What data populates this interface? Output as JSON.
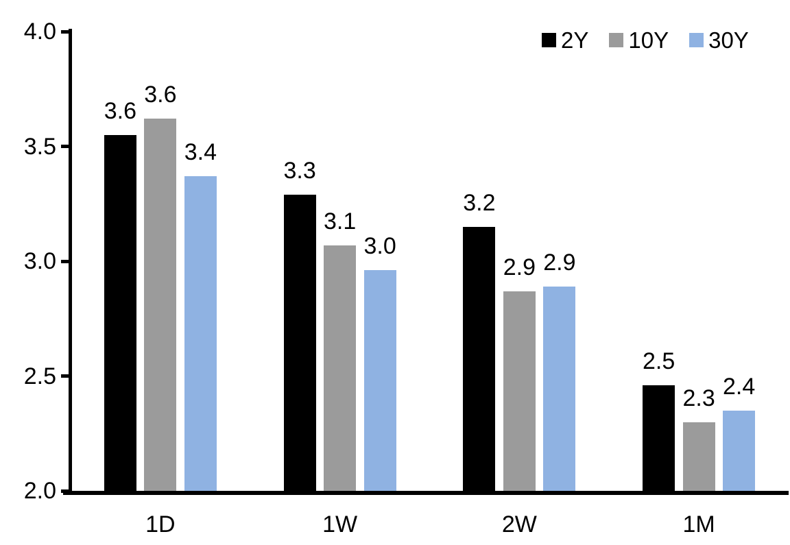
{
  "chart_data": {
    "type": "bar",
    "title": "",
    "xlabel": "",
    "ylabel": "",
    "categories": [
      "1D",
      "1W",
      "2W",
      "1M"
    ],
    "series": [
      {
        "name": "2Y",
        "color": "#000000",
        "values": [
          3.55,
          3.29,
          3.15,
          2.46
        ],
        "bar_labels": [
          "3.6",
          "3.3",
          "3.2",
          "2.5"
        ]
      },
      {
        "name": "10Y",
        "color": "#9B9B9B",
        "values": [
          3.62,
          3.07,
          2.87,
          2.3
        ],
        "bar_labels": [
          "3.6",
          "3.1",
          "2.9",
          "2.3"
        ]
      },
      {
        "name": "30Y",
        "color": "#8FB2E2",
        "values": [
          3.37,
          2.96,
          2.89,
          2.35
        ],
        "bar_labels": [
          "3.4",
          "3.0",
          "2.9",
          "2.4"
        ]
      }
    ],
    "ylim": [
      2.0,
      4.0
    ],
    "yticks": [
      "2.0",
      "2.5",
      "3.0",
      "3.5",
      "4.0"
    ],
    "grid": false,
    "legend_position": "top-right",
    "axis_color": "#000000",
    "text_color": "#000000",
    "background_color": "#ffffff"
  }
}
